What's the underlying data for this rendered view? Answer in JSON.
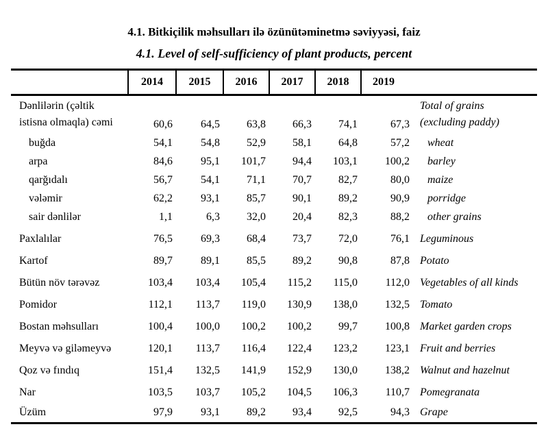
{
  "titles": {
    "azerbaijani": "4.1. Bitkiçilik məhsulları ilə özünütəminetmə səviyyəsi, faiz",
    "english": "4.1. Level of self-sufficiency of plant products, percent"
  },
  "table": {
    "years": [
      "2014",
      "2015",
      "2016",
      "2017",
      "2018",
      "2019"
    ],
    "rows": [
      {
        "az1": "Dənlilərin (çəltik",
        "az2": "istisna olmaqla) cəmi",
        "en1": "Total of grains",
        "en2": "(excluding paddy)",
        "values": [
          "60,6",
          "64,5",
          "63,8",
          "66,3",
          "74,1",
          "67,3"
        ]
      },
      {
        "az": "buğda",
        "en": "wheat",
        "values": [
          "54,1",
          "54,8",
          "52,9",
          "58,1",
          "64,8",
          "57,2"
        ]
      },
      {
        "az": "arpa",
        "en": "barley",
        "values": [
          "84,6",
          "95,1",
          "101,7",
          "94,4",
          "103,1",
          "100,2"
        ]
      },
      {
        "az": "qarğıdalı",
        "en": "maize",
        "values": [
          "56,7",
          "54,1",
          "71,1",
          "70,7",
          "82,7",
          "80,0"
        ]
      },
      {
        "az": "vələmir",
        "en": "porridge",
        "values": [
          "62,2",
          "93,1",
          "85,7",
          "90,1",
          "89,2",
          "90,9"
        ]
      },
      {
        "az": "sair dənlilər",
        "en": "other grains",
        "values": [
          "1,1",
          "6,3",
          "32,0",
          "20,4",
          "82,3",
          "88,2"
        ]
      },
      {
        "az": "Paxlalılar",
        "en": "Leguminous",
        "values": [
          "76,5",
          "69,3",
          "68,4",
          "73,7",
          "72,0",
          "76,1"
        ]
      },
      {
        "az": "Kartof",
        "en": "Potato",
        "values": [
          "89,7",
          "89,1",
          "85,5",
          "89,2",
          "90,8",
          "87,8"
        ]
      },
      {
        "az": "Bütün növ tərəvəz",
        "en": "Vegetables of all kinds",
        "values": [
          "103,4",
          "103,4",
          "105,4",
          "115,2",
          "115,0",
          "112,0"
        ]
      },
      {
        "az": "Pomidor",
        "en": "Tomato",
        "values": [
          "112,1",
          "113,7",
          "119,0",
          "130,9",
          "138,0",
          "132,5"
        ]
      },
      {
        "az": "Bostan məhsulları",
        "en": "Market garden crops",
        "values": [
          "100,4",
          "100,0",
          "100,2",
          "100,2",
          "99,7",
          "100,8"
        ]
      },
      {
        "az": "Meyvə və giləmeyvə",
        "en": "Fruit and berries",
        "values": [
          "120,1",
          "113,7",
          "116,4",
          "122,4",
          "123,2",
          "123,1"
        ]
      },
      {
        "az": "Qoz və fındıq",
        "en": "Walnut and hazelnut",
        "values": [
          "151,4",
          "132,5",
          "141,9",
          "152,9",
          "130,0",
          "138,2"
        ]
      },
      {
        "az": "Nar",
        "en": "Pomegranata",
        "values": [
          "103,5",
          "103,7",
          "105,2",
          "104,5",
          "106,3",
          "110,7"
        ]
      },
      {
        "az": "Üzüm",
        "en": "Grape",
        "values": [
          "97,9",
          "93,1",
          "89,2",
          "93,4",
          "92,5",
          "94,3"
        ]
      }
    ]
  }
}
